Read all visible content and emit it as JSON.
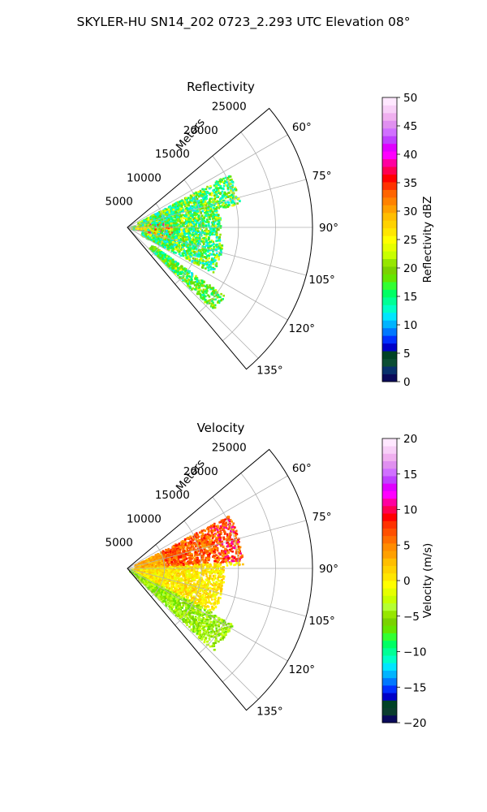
{
  "figure": {
    "suptitle": "SKYLER-HU  SN14_202  0723_2.293 UTC Elevation 08°"
  },
  "chart_data": [
    {
      "type": "polar-sector",
      "title": "Reflectivity",
      "radial_label": "Meters",
      "rlim": [
        0,
        25000
      ],
      "radial_ticks": [
        5000,
        10000,
        15000,
        20000,
        25000
      ],
      "radial_tick_labels": [
        "5000",
        "10000",
        "15000",
        "20000",
        "25000"
      ],
      "theta_range_deg": [
        50,
        140
      ],
      "angle_ticks_deg": [
        60,
        75,
        90,
        105,
        120,
        135
      ],
      "angle_tick_labels": [
        "60°",
        "75°",
        "90°",
        "105°",
        "120°",
        "135°"
      ],
      "grid": true,
      "colorbar": {
        "label": "Reflectivity dBZ",
        "range": [
          0,
          50
        ],
        "ticks": [
          0,
          5,
          10,
          15,
          20,
          25,
          30,
          35,
          40,
          45,
          50
        ],
        "tick_labels": [
          "0",
          "5",
          "10",
          "15",
          "20",
          "25",
          "30",
          "35",
          "40",
          "45",
          "50"
        ],
        "colors": [
          "#0a0a5a",
          "#08306b",
          "#0b4d33",
          "#004225",
          "#0000c8",
          "#0030ff",
          "#0078ff",
          "#00b4ff",
          "#00e6ff",
          "#00ffc8",
          "#00ff96",
          "#00ff64",
          "#32ff32",
          "#64e600",
          "#7ad200",
          "#96e600",
          "#c8ff00",
          "#e6ff00",
          "#ffff00",
          "#ffe600",
          "#ffd200",
          "#ffbe00",
          "#ffa000",
          "#ff8200",
          "#ff6400",
          "#ff3200",
          "#ff0000",
          "#ff0050",
          "#ff00a0",
          "#ff00ff",
          "#e000ff",
          "#c040ff",
          "#d070ff",
          "#e090f0",
          "#f0b0f0",
          "#f8d0f8",
          "#ffe8ff"
        ]
      },
      "echo_regions": [
        {
          "theta_min": 62,
          "theta_max": 78,
          "r_min": 1500,
          "r_max": 15500,
          "level": "15-25 dBZ"
        },
        {
          "theta_min": 78,
          "theta_max": 100,
          "r_min": 500,
          "r_max": 12500,
          "level": "10-25 dBZ"
        },
        {
          "theta_min": 100,
          "theta_max": 118,
          "r_min": 2000,
          "r_max": 13000,
          "level": "10-25 dBZ"
        },
        {
          "theta_min": 125,
          "theta_max": 134,
          "r_min": 4000,
          "r_max": 16000,
          "level": "15-22 dBZ"
        },
        {
          "theta_min": 85,
          "theta_max": 96,
          "r_min": 500,
          "r_max": 3000,
          "level": "30-40 dBZ"
        }
      ]
    },
    {
      "type": "polar-sector",
      "title": "Velocity",
      "radial_label": "Meters",
      "rlim": [
        0,
        25000
      ],
      "radial_ticks": [
        5000,
        10000,
        15000,
        20000,
        25000
      ],
      "radial_tick_labels": [
        "5000",
        "10000",
        "15000",
        "20000",
        "25000"
      ],
      "theta_range_deg": [
        50,
        140
      ],
      "angle_ticks_deg": [
        60,
        75,
        90,
        105,
        120,
        135
      ],
      "angle_tick_labels": [
        "60°",
        "75°",
        "90°",
        "105°",
        "120°",
        "135°"
      ],
      "grid": true,
      "colorbar": {
        "label": "Velocity (m/s)",
        "range": [
          -20,
          20
        ],
        "ticks": [
          -20,
          -15,
          -10,
          -5,
          0,
          5,
          10,
          15,
          20
        ],
        "tick_labels": [
          "−20",
          "−15",
          "−10",
          "−5",
          "0",
          "5",
          "10",
          "15",
          "20"
        ],
        "colors": [
          "#0a0a5a",
          "#0b3d2e",
          "#004225",
          "#0000c8",
          "#0030ff",
          "#0078ff",
          "#00b4ff",
          "#00e6ff",
          "#00ffc8",
          "#00ff96",
          "#00ff64",
          "#32ff32",
          "#64e600",
          "#7ad200",
          "#96e600",
          "#b4ff32",
          "#c8ff00",
          "#e6ff00",
          "#ffff00",
          "#ffe600",
          "#ffd200",
          "#ffbe00",
          "#ffa000",
          "#ff8c00",
          "#ff6e00",
          "#ff5000",
          "#ff3200",
          "#ff0000",
          "#ff0050",
          "#ff00a0",
          "#ff00ff",
          "#e000ff",
          "#c040ff",
          "#d070ff",
          "#e090f0",
          "#f0b0f0",
          "#f8d0f8",
          "#ffe8ff"
        ]
      },
      "echo_regions": [
        {
          "theta_min": 62,
          "theta_max": 88,
          "r_min": 1000,
          "r_max": 15500,
          "level": "5-12 m/s"
        },
        {
          "theta_min": 88,
          "theta_max": 118,
          "r_min": 500,
          "r_max": 13000,
          "level": "0-4 m/s"
        },
        {
          "theta_min": 118,
          "theta_max": 134,
          "r_min": 300,
          "r_max": 16000,
          "level": "-3 to -6 m/s"
        }
      ]
    }
  ]
}
